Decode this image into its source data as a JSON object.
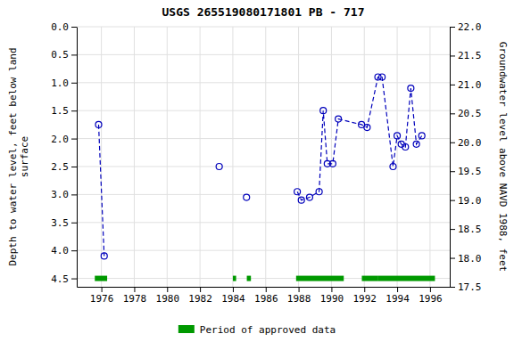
{
  "chart_data": {
    "type": "line",
    "title": "USGS 265519080171801 PB - 717",
    "y_label": "Depth to water level, feet below land\nsurface",
    "y2_label": "Groundwater level above NAVD 1988, feet",
    "xlim": [
      1974.5,
      1997.2
    ],
    "xticks": [
      1976,
      1978,
      1980,
      1982,
      1984,
      1986,
      1988,
      1990,
      1992,
      1994,
      1996
    ],
    "ylim": [
      4.65,
      0.0
    ],
    "yticks": [
      {
        "value": 0.0,
        "label": "0.0"
      },
      0.5,
      {
        "value": 1.0,
        "label": "1.0"
      },
      1.5,
      {
        "value": 2.0,
        "label": "2.0"
      },
      2.5,
      {
        "value": 3.0,
        "label": "3.0"
      },
      3.5,
      {
        "value": 4.0,
        "label": "4.0"
      },
      4.5
    ],
    "y2lim": [
      17.5,
      22.0
    ],
    "y2ticks": [
      17.5,
      {
        "value": 18.0,
        "label": "18.0"
      },
      18.5,
      {
        "value": 19.0,
        "label": "19.0"
      },
      19.5,
      {
        "value": 20.0,
        "label": "20.0"
      },
      20.5,
      {
        "value": 21.0,
        "label": "21.0"
      },
      21.5,
      {
        "value": 22.0,
        "label": "22.0"
      }
    ],
    "grid": true,
    "legend": "bottom",
    "series": [
      {
        "x": [
          1975.83,
          1976.17
        ],
        "values": [
          1.75,
          4.1
        ],
        "color": "#0000bb",
        "line_style": "dashed",
        "marker": "circle"
      },
      {
        "x": [
          1983.17,
          1984.83
        ],
        "values": [
          2.5,
          3.05
        ],
        "color": "#0000bb",
        "line_style": "none",
        "marker": "circle"
      },
      {
        "x": [
          1987.92,
          1988.17,
          1988.67,
          1989.25,
          1989.5,
          1989.75,
          1990.08,
          1990.42,
          1991.83,
          1992.17,
          1992.83,
          1993.08,
          1993.75,
          1994.0,
          1994.25,
          1994.5,
          1994.83,
          1995.17,
          1995.5
        ],
        "values": [
          2.95,
          3.1,
          3.05,
          2.95,
          1.5,
          2.45,
          2.45,
          1.65,
          1.75,
          1.8,
          0.9,
          0.9,
          2.5,
          1.95,
          2.1,
          2.15,
          1.1,
          2.1,
          1.95
        ],
        "color": "#0000bb",
        "line_style": "dashed",
        "marker": "circle"
      },
      {
        "name": "Period of approved data",
        "type": "bar",
        "orientation": "horizontal",
        "color": "#009900",
        "starts": [
          1975.6,
          1984.0,
          1984.85,
          1987.85,
          1991.85,
          1992.85
        ],
        "ends": [
          1976.35,
          1984.2,
          1985.1,
          1990.75,
          1992.85,
          1996.3
        ],
        "y": 4.5
      }
    ]
  }
}
